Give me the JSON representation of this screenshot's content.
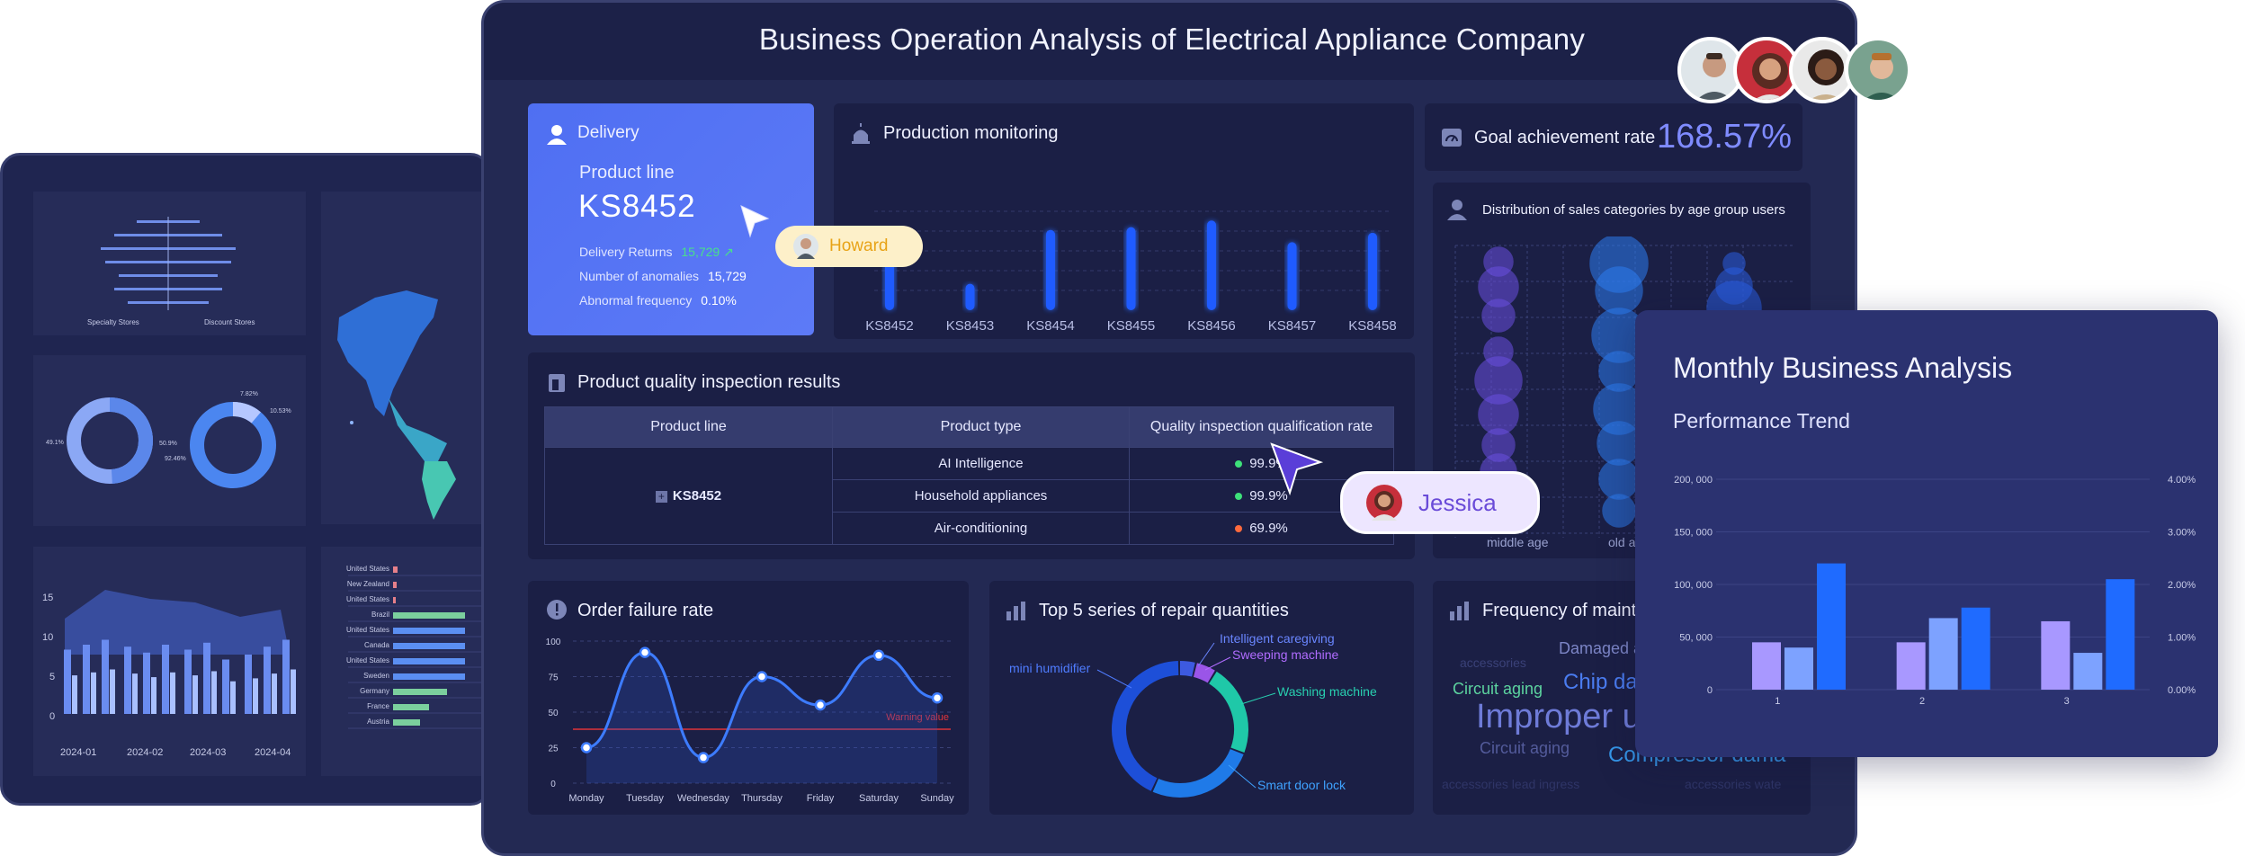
{
  "main": {
    "title": "Business Operation Analysis of Electrical Appliance Company",
    "delivery": {
      "title": "Delivery",
      "product_line_label": "Product line",
      "product_line_value": "KS8452",
      "stats": [
        {
          "label": "Delivery Returns",
          "value": "15,729"
        },
        {
          "label": "Number of anomalies",
          "value": "15,729"
        },
        {
          "label": "Abnormal frequency",
          "value": "0.10%"
        }
      ]
    },
    "production": {
      "title": "Production monitoring",
      "categories": [
        "KS8452",
        "KS8453",
        "KS8454",
        "KS8455",
        "KS8456",
        "KS8457",
        "KS8458"
      ],
      "values": [
        0.55,
        0.28,
        0.85,
        0.88,
        0.95,
        0.72,
        0.82
      ]
    },
    "goal": {
      "title": "Goal achievement rate",
      "value": "168.57%"
    },
    "age_dist": {
      "title": "Distribution of sales categories by age group users",
      "x_labels": [
        "middle age",
        "old ag"
      ]
    },
    "quality": {
      "title": "Product quality inspection results",
      "headers": [
        "Product line",
        "Product type",
        "Quality inspection qualification rate"
      ],
      "product_line": "KS8452",
      "rows": [
        {
          "type": "AI Intelligence",
          "rate": "99.9%",
          "status_color": "#3ee07a"
        },
        {
          "type": "Household appliances",
          "rate": "99.9%",
          "status_color": "#3ee07a"
        },
        {
          "type": "Air-conditioning",
          "rate": "69.9%",
          "status_color": "#ff6a3d"
        }
      ]
    },
    "order_failure": {
      "title": "Order failure rate",
      "warning_label": "Warning value",
      "y_ticks": [
        "100",
        "75",
        "50",
        "25",
        "0"
      ],
      "days": [
        "Monday",
        "Tuesday",
        "Wednesday",
        "Thursday",
        "Friday",
        "Saturday",
        "Sunday"
      ]
    },
    "repair": {
      "title": "Top 5 series of repair quantities",
      "segments": [
        "Intelligent caregiving",
        "Sweeping machine",
        "Washing machine",
        "Smart door lock",
        "mini humidifier"
      ]
    },
    "frequency": {
      "title": "Frequency of mainte",
      "words": [
        "Damaged ac",
        "Circuit aging",
        "Chip da",
        "Improper us",
        "Circuit aging",
        "Compressor dama",
        "accessories",
        "accessories lead ingress",
        "accessories wate"
      ]
    }
  },
  "collab": {
    "cursor_howard": "Howard",
    "cursor_jessica": "Jessica"
  },
  "analysis_card": {
    "title": "Monthly Business Analysis",
    "subtitle": "Performance Trend",
    "y_left": [
      "200, 000",
      "150, 000",
      "100, 000",
      "50, 000",
      "0"
    ],
    "y_right": [
      "4.00%",
      "3.00%",
      "2.00%",
      "1.00%",
      "0.00%"
    ],
    "categories": [
      "1",
      "2",
      "3"
    ]
  },
  "back_dashboard": {
    "bar_labels": [
      "Specialty Stores",
      "Discount Stores"
    ],
    "donut_labels": [
      "49.1%",
      "50.9%",
      "7.82%",
      "10.53%",
      "92.46%"
    ],
    "area_y": [
      "15",
      "10",
      "5",
      "0"
    ],
    "area_x": [
      "2024-01",
      "2024-02",
      "2024-03",
      "2024-04"
    ],
    "countries": [
      "United States",
      "New Zealand",
      "United States",
      "Brazil",
      "United States",
      "Canada",
      "United States",
      "Sweden",
      "Germany",
      "France",
      "Austria"
    ]
  },
  "chart_data": [
    {
      "type": "bar",
      "title": "Production monitoring",
      "categories": [
        "KS8452",
        "KS8453",
        "KS8454",
        "KS8455",
        "KS8456",
        "KS8457",
        "KS8458"
      ],
      "values": [
        0.55,
        0.28,
        0.85,
        0.88,
        0.95,
        0.72,
        0.82
      ]
    },
    {
      "type": "line",
      "title": "Order failure rate",
      "categories": [
        "Monday",
        "Tuesday",
        "Wednesday",
        "Thursday",
        "Friday",
        "Saturday",
        "Sunday"
      ],
      "values": [
        25,
        92,
        18,
        75,
        55,
        90,
        60
      ],
      "extra_points": [],
      "ylim": [
        0,
        100
      ],
      "warning_value": 38
    },
    {
      "type": "pie",
      "title": "Top 5 series of repair quantities",
      "categories": [
        "Intelligent caregiving",
        "Sweeping machine",
        "Washing machine",
        "Smart door lock",
        "mini humidifier"
      ],
      "values": [
        4,
        5,
        22,
        26,
        43
      ]
    },
    {
      "type": "bar",
      "title": "Performance Trend",
      "categories": [
        "1",
        "2",
        "3"
      ],
      "series": [
        {
          "values": [
            45000,
            40000,
            120000
          ]
        },
        {
          "values": [
            45000,
            68000,
            78000
          ]
        },
        {
          "values": [
            65000,
            35000,
            105000
          ]
        }
      ],
      "ylim": [
        0,
        200000
      ],
      "y2lim": [
        0,
        4
      ]
    }
  ]
}
